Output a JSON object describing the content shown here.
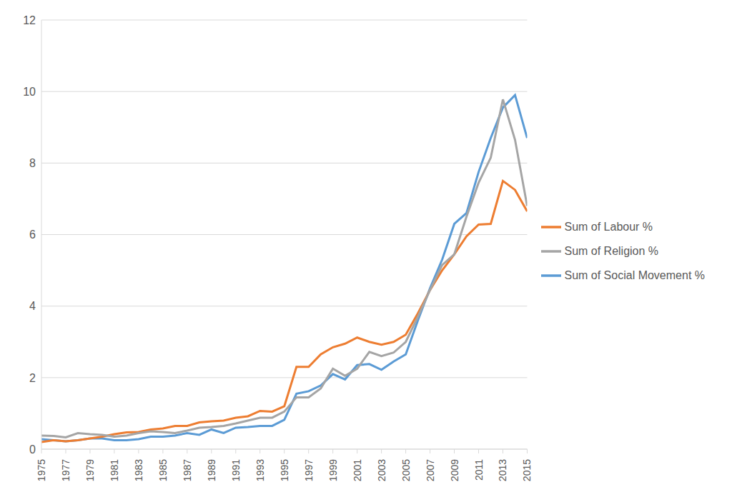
{
  "chart_data": {
    "type": "line",
    "x": [
      1975,
      1976,
      1977,
      1978,
      1979,
      1980,
      1981,
      1982,
      1983,
      1984,
      1985,
      1986,
      1987,
      1988,
      1989,
      1990,
      1991,
      1992,
      1993,
      1994,
      1995,
      1996,
      1997,
      1998,
      1999,
      2000,
      2001,
      2002,
      2003,
      2004,
      2005,
      2006,
      2007,
      2008,
      2009,
      2010,
      2011,
      2012,
      2013,
      2014,
      2015
    ],
    "series": [
      {
        "name": "Sum of Social Movement %",
        "color": "#5b9bd5",
        "values": [
          0.28,
          0.25,
          0.22,
          0.25,
          0.3,
          0.3,
          0.25,
          0.25,
          0.28,
          0.35,
          0.35,
          0.38,
          0.45,
          0.4,
          0.55,
          0.45,
          0.6,
          0.62,
          0.65,
          0.65,
          0.82,
          1.55,
          1.62,
          1.78,
          2.1,
          1.95,
          2.35,
          2.38,
          2.22,
          2.45,
          2.65,
          3.6,
          4.5,
          5.3,
          6.3,
          6.6,
          7.75,
          8.7,
          9.55,
          9.9,
          8.7
        ]
      },
      {
        "name": "Sum of Labour %",
        "color": "#ed7d31",
        "values": [
          0.2,
          0.25,
          0.22,
          0.25,
          0.3,
          0.35,
          0.42,
          0.47,
          0.48,
          0.55,
          0.58,
          0.65,
          0.65,
          0.75,
          0.78,
          0.8,
          0.88,
          0.92,
          1.07,
          1.05,
          1.2,
          2.3,
          2.3,
          2.65,
          2.85,
          2.95,
          3.12,
          3.0,
          2.92,
          3.0,
          3.2,
          3.8,
          4.45,
          5.0,
          5.45,
          5.95,
          6.28,
          6.3,
          7.5,
          7.25,
          6.65
        ]
      },
      {
        "name": "Sum of Religion %",
        "color": "#a5a5a5",
        "values": [
          0.38,
          0.37,
          0.33,
          0.45,
          0.42,
          0.4,
          0.35,
          0.38,
          0.45,
          0.5,
          0.48,
          0.45,
          0.52,
          0.6,
          0.62,
          0.65,
          0.72,
          0.8,
          0.88,
          0.88,
          1.05,
          1.45,
          1.45,
          1.7,
          2.25,
          2.05,
          2.25,
          2.72,
          2.6,
          2.7,
          3.0,
          3.7,
          4.45,
          5.15,
          5.45,
          6.5,
          7.45,
          8.15,
          9.78,
          8.65,
          6.8
        ]
      }
    ],
    "xlim": [
      1975,
      2015
    ],
    "xticks": [
      1975,
      1977,
      1979,
      1981,
      1983,
      1985,
      1987,
      1989,
      1991,
      1993,
      1995,
      1997,
      1999,
      2001,
      2003,
      2005,
      2007,
      2009,
      2011,
      2013,
      2015
    ],
    "ylim": [
      0,
      12
    ],
    "yticks": [
      0,
      2,
      4,
      6,
      8,
      10,
      12
    ],
    "grid": true,
    "legend": "right"
  }
}
